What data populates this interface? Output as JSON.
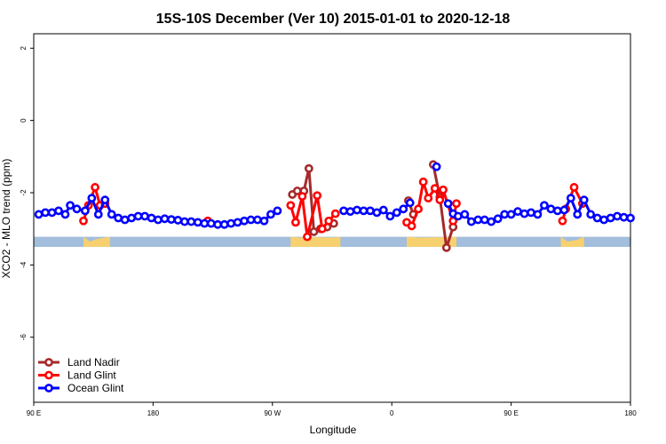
{
  "chart_data": {
    "type": "line",
    "title": "15S-10S December (Ver 10)   2015-01-01 to 2020-12-18",
    "xlabel": "Longitude",
    "ylabel": "XCO2 - MLO trend (ppm)",
    "xlim": [
      0,
      360
    ],
    "ylim": [
      -7.8,
      2.4
    ],
    "x_ticks": [
      {
        "value": 0,
        "label": "90 E"
      },
      {
        "value": 72,
        "label": "180"
      },
      {
        "value": 144,
        "label": "90 W"
      },
      {
        "value": 216,
        "label": "0"
      },
      {
        "value": 288,
        "label": "90 E"
      },
      {
        "value": 360,
        "label": "180"
      }
    ],
    "y_ticks": [
      {
        "value": 2,
        "label": "2"
      },
      {
        "value": 0,
        "label": "0"
      },
      {
        "value": -2,
        "label": "-2"
      },
      {
        "value": -4,
        "label": "-4"
      },
      {
        "value": -6,
        "label": "-6"
      }
    ],
    "band": {
      "y_top": -3.22,
      "y_bottom": -3.5,
      "ocean_color": "#a3bddc",
      "land_color": "#f7d070"
    },
    "land_segments": [
      {
        "x0": 30,
        "x1": 46,
        "peak": [
          [
            34,
            -3.35
          ],
          [
            38,
            -3.28
          ],
          [
            42,
            -3.25
          ]
        ]
      },
      {
        "x0": 155,
        "x1": 185,
        "peak": [
          [
            160,
            -3.24
          ],
          [
            170,
            -3.23
          ],
          [
            180,
            -3.24
          ]
        ]
      },
      {
        "x0": 225,
        "x1": 255,
        "peak": [
          [
            232,
            -3.24
          ],
          [
            245,
            -3.23
          ]
        ]
      },
      {
        "x0": 318,
        "x1": 332,
        "peak": [
          [
            322,
            -3.35
          ],
          [
            328,
            -3.3
          ]
        ]
      }
    ],
    "series": [
      {
        "name": "Land Nadir",
        "color": "#a52a2a",
        "segments": [
          [
            [
              156,
              -2.05
            ],
            [
              159,
              -1.95
            ],
            [
              163,
              -1.95
            ],
            [
              166,
              -1.33
            ],
            [
              169,
              -3.08
            ],
            [
              173,
              -3.0
            ],
            [
              177,
              -2.95
            ],
            [
              181,
              -2.85
            ]
          ],
          [
            [
              226,
              -2.22
            ],
            [
              229,
              -2.6
            ]
          ],
          [
            [
              241,
              -1.22
            ],
            [
              245,
              -2.12
            ],
            [
              249,
              -3.52
            ],
            [
              253,
              -2.95
            ]
          ]
        ]
      },
      {
        "name": "Land Glint",
        "color": "#ff0000",
        "segments": [
          [
            [
              30,
              -2.78
            ],
            [
              33,
              -2.35
            ],
            [
              37,
              -1.85
            ],
            [
              40,
              -2.35
            ],
            [
              43,
              -2.3
            ]
          ],
          [
            [
              105,
              -2.78
            ]
          ],
          [
            [
              155,
              -2.35
            ],
            [
              158,
              -2.82
            ],
            [
              162,
              -2.1
            ],
            [
              165,
              -3.22
            ],
            [
              171,
              -2.08
            ],
            [
              174,
              -3.0
            ],
            [
              178,
              -2.78
            ],
            [
              182,
              -2.58
            ]
          ],
          [
            [
              225,
              -2.82
            ],
            [
              228,
              -2.92
            ],
            [
              232,
              -2.45
            ],
            [
              235,
              -1.7
            ],
            [
              238,
              -2.15
            ],
            [
              242,
              -1.88
            ],
            [
              245,
              -2.2
            ],
            [
              247,
              -1.92
            ],
            [
              253,
              -2.78
            ],
            [
              255,
              -2.3
            ]
          ],
          [
            [
              319,
              -2.78
            ],
            [
              321,
              -2.45
            ],
            [
              326,
              -1.85
            ],
            [
              331,
              -2.3
            ]
          ]
        ]
      },
      {
        "name": "Ocean Glint",
        "color": "#0000ff",
        "segments": [
          [
            [
              3,
              -2.6
            ],
            [
              7,
              -2.55
            ],
            [
              11,
              -2.55
            ],
            [
              15,
              -2.5
            ],
            [
              19,
              -2.6
            ],
            [
              22,
              -2.35
            ],
            [
              26,
              -2.45
            ],
            [
              31,
              -2.5
            ],
            [
              35,
              -2.15
            ],
            [
              39,
              -2.6
            ],
            [
              43,
              -2.2
            ],
            [
              47,
              -2.6
            ],
            [
              51,
              -2.7
            ],
            [
              55,
              -2.75
            ],
            [
              59,
              -2.7
            ],
            [
              63,
              -2.65
            ],
            [
              67,
              -2.65
            ],
            [
              71,
              -2.7
            ],
            [
              75,
              -2.75
            ],
            [
              79,
              -2.72
            ],
            [
              83,
              -2.74
            ],
            [
              87,
              -2.76
            ],
            [
              91,
              -2.8
            ],
            [
              95,
              -2.8
            ],
            [
              99,
              -2.82
            ],
            [
              103,
              -2.85
            ],
            [
              107,
              -2.85
            ],
            [
              111,
              -2.88
            ],
            [
              115,
              -2.88
            ],
            [
              119,
              -2.85
            ],
            [
              123,
              -2.82
            ],
            [
              127,
              -2.78
            ],
            [
              131,
              -2.75
            ],
            [
              135,
              -2.75
            ],
            [
              139,
              -2.78
            ],
            [
              143,
              -2.6
            ],
            [
              147,
              -2.5
            ]
          ],
          [
            [
              187,
              -2.5
            ],
            [
              191,
              -2.52
            ],
            [
              195,
              -2.48
            ],
            [
              199,
              -2.5
            ],
            [
              203,
              -2.5
            ],
            [
              207,
              -2.55
            ],
            [
              211,
              -2.48
            ],
            [
              215,
              -2.65
            ],
            [
              219,
              -2.55
            ],
            [
              223,
              -2.45
            ],
            [
              227,
              -2.28
            ]
          ],
          [
            [
              243,
              -1.28
            ]
          ],
          [
            [
              250,
              -2.3
            ],
            [
              253,
              -2.58
            ],
            [
              256,
              -2.65
            ],
            [
              260,
              -2.6
            ],
            [
              264,
              -2.8
            ],
            [
              268,
              -2.75
            ],
            [
              272,
              -2.75
            ],
            [
              276,
              -2.8
            ],
            [
              280,
              -2.72
            ],
            [
              284,
              -2.6
            ],
            [
              288,
              -2.6
            ],
            [
              292,
              -2.52
            ],
            [
              296,
              -2.58
            ],
            [
              300,
              -2.55
            ],
            [
              304,
              -2.6
            ],
            [
              308,
              -2.35
            ],
            [
              312,
              -2.45
            ],
            [
              316,
              -2.5
            ],
            [
              320,
              -2.48
            ],
            [
              324,
              -2.15
            ],
            [
              328,
              -2.6
            ],
            [
              332,
              -2.2
            ],
            [
              336,
              -2.6
            ],
            [
              340,
              -2.7
            ],
            [
              344,
              -2.75
            ],
            [
              348,
              -2.7
            ],
            [
              352,
              -2.65
            ],
            [
              356,
              -2.68
            ],
            [
              360,
              -2.7
            ]
          ]
        ]
      }
    ]
  }
}
